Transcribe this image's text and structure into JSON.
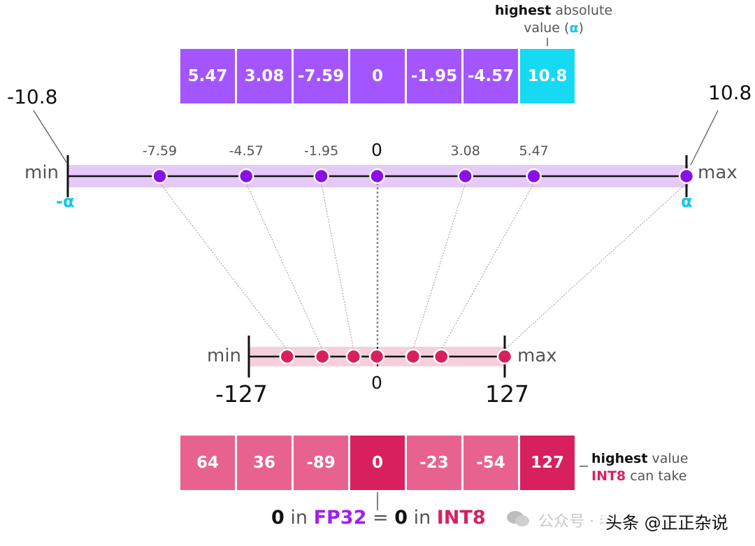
{
  "colors": {
    "fp32_cell": "#a355ff",
    "alpha_cell": "#16d9f4",
    "purple_dot": "#8a0ee8",
    "purple_band": "#e6c8fa",
    "int8_cell": "#e8628f",
    "int8_highlight": "#d8205f",
    "pink_dot": "#d8205f",
    "pink_band": "#f6cfdc",
    "alpha_text": "#15c7ea",
    "fp32_text": "#a020f0",
    "int8_text": "#d8205f"
  },
  "fp32_values": [
    "5.47",
    "3.08",
    "-7.59",
    "0",
    "-1.95",
    "-4.57",
    "10.8"
  ],
  "int8_values": [
    "64",
    "36",
    "-89",
    "0",
    "-23",
    "-54",
    "127"
  ],
  "top_note": {
    "strong": "highest",
    "rest1": " absolute",
    "line2": "value (",
    "alpha": "α",
    "close": ")"
  },
  "fp32_axis": {
    "min_label": "min",
    "max_label": "max",
    "left_value": "-10.8",
    "right_value": "10.8",
    "neg_alpha_dash": "-",
    "alpha": "α",
    "zero": "0",
    "points": [
      {
        "label": "-7.59",
        "value": -7.59
      },
      {
        "label": "-4.57",
        "value": -4.57
      },
      {
        "label": "-1.95",
        "value": -1.95
      },
      {
        "label": "0",
        "value": 0
      },
      {
        "label": "3.08",
        "value": 3.08
      },
      {
        "label": "5.47",
        "value": 5.47
      },
      {
        "label": "",
        "value": 10.8
      }
    ],
    "range": [
      -10.8,
      10.8
    ]
  },
  "int8_axis": {
    "min_label": "min",
    "max_label": "max",
    "left_value": "-127",
    "right_value": "127",
    "zero": "0",
    "points": [
      -89,
      -54,
      -23,
      0,
      36,
      64,
      127
    ],
    "range": [
      -127,
      127
    ]
  },
  "int8_note": {
    "strong": "highest",
    "rest1": " value",
    "int8": "INT8",
    "rest2": " can take"
  },
  "bottom_caption": {
    "zero1": "0",
    "in1": " in ",
    "fp32": "FP32",
    "eq": " = ",
    "zero2": "0",
    "in2": " in ",
    "int8": "INT8"
  },
  "watermark": {
    "faded": "公众号 · 老刘说NLP",
    "main": "头条 @正正杂说"
  }
}
